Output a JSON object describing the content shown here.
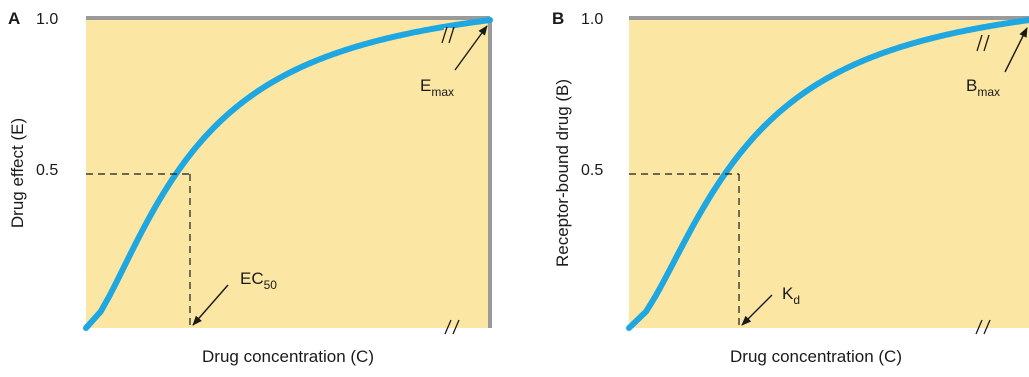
{
  "chart_data": [
    {
      "type": "line",
      "panel_label": "A",
      "ylabel": "Drug effect (E)",
      "xlabel": "Drug concentration (C)",
      "ylim": [
        0,
        1.0
      ],
      "yticks": [
        {
          "value": 0.5,
          "label": "0.5"
        },
        {
          "value": 1.0,
          "label": "1.0"
        }
      ],
      "series": [
        {
          "x": [
            0,
            0.25,
            0.5,
            1,
            2,
            3,
            4,
            5,
            6,
            7,
            8
          ],
          "y": [
            0,
            0.2,
            0.333,
            0.5,
            0.667,
            0.75,
            0.8,
            0.833,
            0.857,
            0.875,
            0.889
          ]
        }
      ],
      "x_axis_break": true,
      "curve_break": true,
      "reference_point": {
        "x": 1,
        "y": 0.5
      },
      "annotations": [
        {
          "main": "E",
          "sub": "max",
          "points_to": "curve-end"
        },
        {
          "main": "EC",
          "sub": "50",
          "points_to": "x at 0.5"
        }
      ],
      "colors": {
        "curve": "#1ea7e1",
        "background": "#fce6a4",
        "frame": "#9a9a9a"
      }
    },
    {
      "type": "line",
      "panel_label": "B",
      "ylabel": "Receptor-bound drug (B)",
      "xlabel": "Drug concentration (C)",
      "ylim": [
        0,
        1.0
      ],
      "yticks": [
        {
          "value": 0.5,
          "label": "0.5"
        },
        {
          "value": 1.0,
          "label": "1.0"
        }
      ],
      "series": [
        {
          "x": [
            0,
            0.25,
            0.5,
            1,
            2,
            3,
            4,
            5,
            6,
            7,
            8
          ],
          "y": [
            0,
            0.2,
            0.333,
            0.5,
            0.667,
            0.75,
            0.8,
            0.833,
            0.857,
            0.875,
            0.889
          ]
        }
      ],
      "x_axis_break": true,
      "curve_break": true,
      "reference_point": {
        "x": 1,
        "y": 0.5
      },
      "annotations": [
        {
          "main": "B",
          "sub": "max",
          "points_to": "curve-end"
        },
        {
          "main": "K",
          "sub": "d",
          "points_to": "x at 0.5"
        }
      ],
      "colors": {
        "curve": "#1ea7e1",
        "background": "#fce6a4",
        "frame": "#9a9a9a"
      }
    }
  ]
}
